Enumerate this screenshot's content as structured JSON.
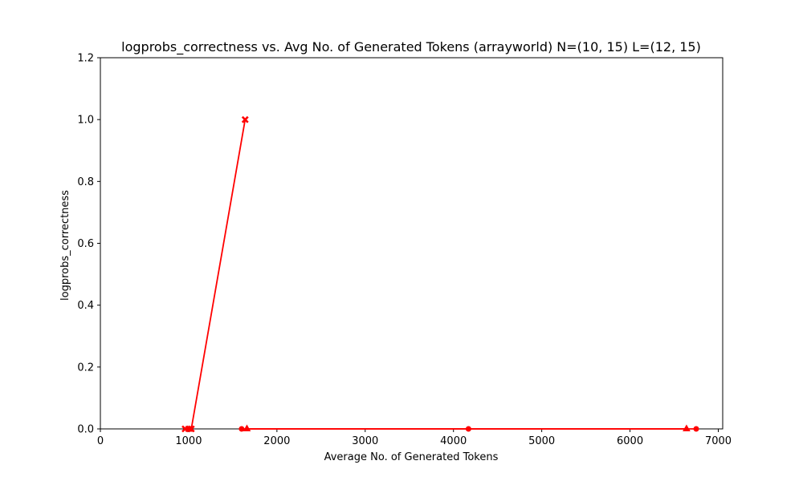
{
  "chart_data": {
    "type": "line",
    "title": "logprobs_correctness vs. Avg No. of Generated Tokens (arrayworld) N=(10, 15) L=(12, 15)",
    "xlabel": "Average No. of Generated Tokens",
    "ylabel": "logprobs_correctness",
    "xlim": [
      0,
      7050
    ],
    "ylim": [
      0,
      1.2
    ],
    "xticks": [
      0,
      1000,
      2000,
      3000,
      4000,
      5000,
      6000,
      7000
    ],
    "yticks": [
      0.0,
      0.2,
      0.4,
      0.6,
      0.8,
      1.0,
      1.2
    ],
    "ytick_labels": [
      "0.0",
      "0.2",
      "0.4",
      "0.6",
      "0.8",
      "1.0",
      "1.2"
    ],
    "grid": false,
    "color": "#ff0000",
    "series": [
      {
        "marker": "x",
        "points": [
          [
            960,
            0.0
          ],
          [
            1030,
            0.0
          ],
          [
            1640,
            1.0
          ]
        ]
      },
      {
        "marker": "o",
        "points": [
          [
            1600,
            0.0
          ],
          [
            4170,
            0.0
          ],
          [
            6750,
            0.0
          ]
        ]
      },
      {
        "marker": "^",
        "points": [
          [
            1660,
            0.0
          ],
          [
            6640,
            0.0
          ]
        ]
      },
      {
        "marker": "s",
        "points": [
          [
            995,
            0.0
          ],
          [
            1015,
            0.0
          ]
        ]
      }
    ]
  }
}
